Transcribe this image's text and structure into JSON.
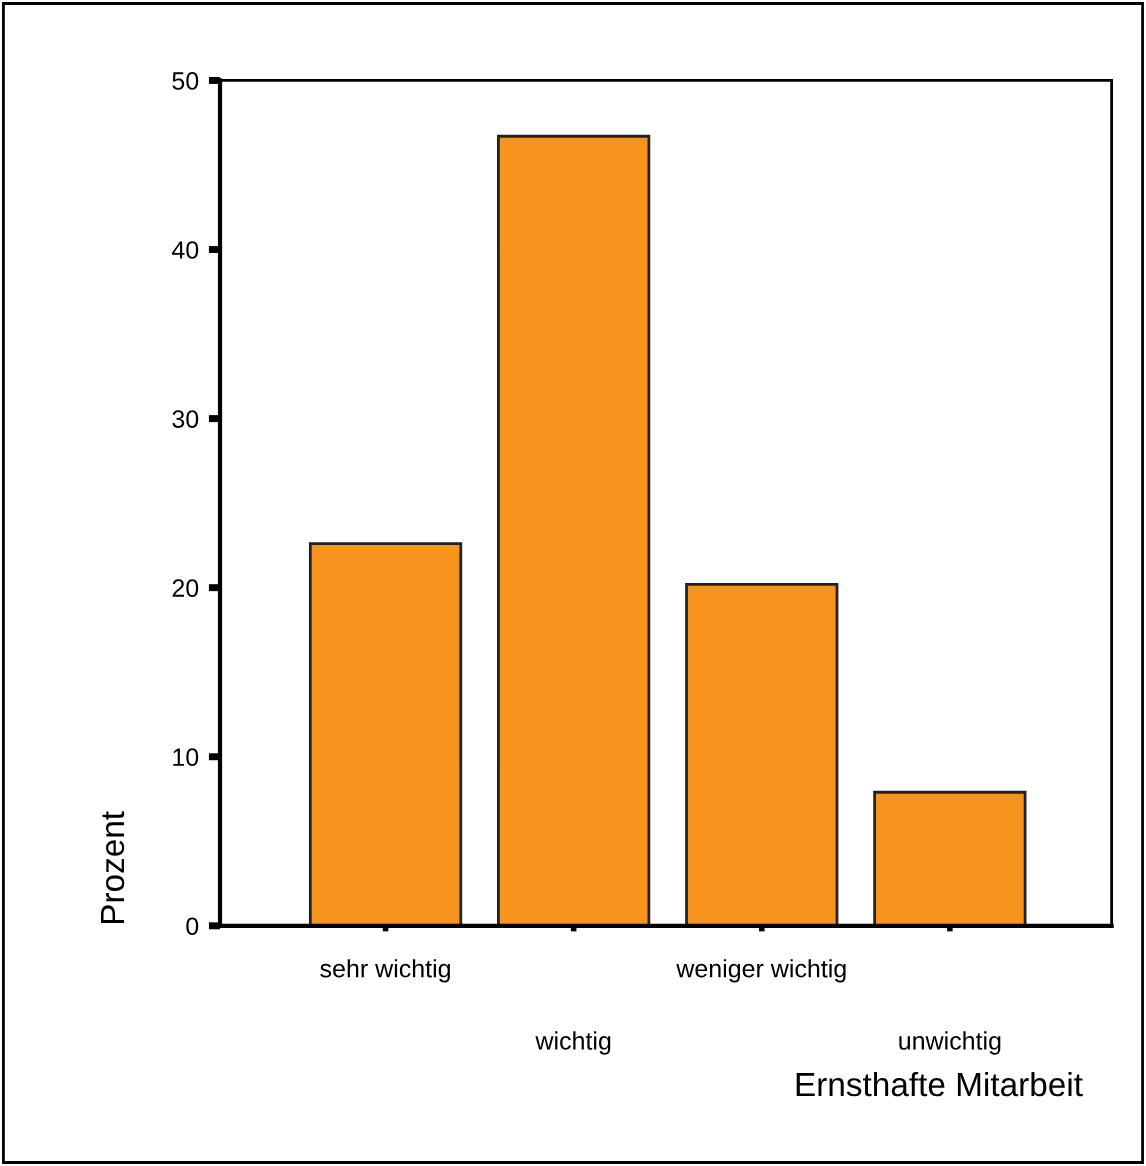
{
  "chart_data": {
    "type": "bar",
    "xlabel": "Ernsthafte Mitarbeit",
    "ylabel": "Prozent",
    "categories": [
      "sehr wichtig",
      "wichtig",
      "weniger wichtig",
      "unwichtig"
    ],
    "values": [
      22.6,
      46.7,
      20.2,
      7.9
    ],
    "color": "#f7941d",
    "ylim": [
      0,
      50
    ],
    "yticks": [
      0,
      10,
      20,
      30,
      40,
      50
    ],
    "grid": false
  }
}
